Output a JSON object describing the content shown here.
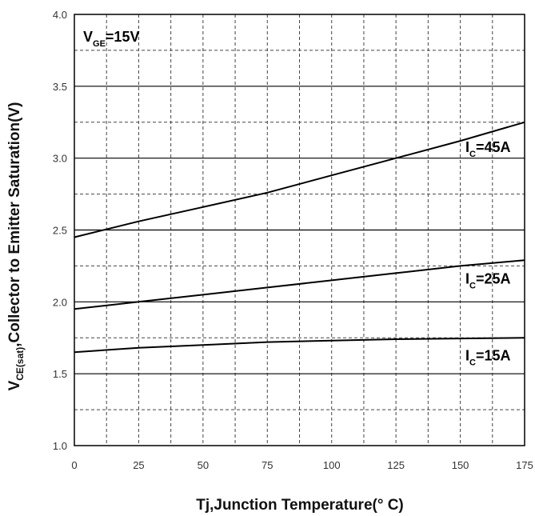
{
  "chart_data": {
    "type": "line",
    "x": [
      0,
      25,
      50,
      75,
      100,
      125,
      150,
      175
    ],
    "xlim": [
      0,
      175
    ],
    "ylim": [
      1.0,
      4.0
    ],
    "x_ticks": [
      "0",
      "25",
      "50",
      "75",
      "100",
      "125",
      "150",
      "175"
    ],
    "y_ticks": [
      "1.0",
      "1.5",
      "2.0",
      "2.5",
      "3.0",
      "3.5",
      "4.0"
    ],
    "xlabel": "Tj,Junction Temperature(° C)",
    "ylabel_main": "V",
    "ylabel_sub": "CE(sat)",
    "ylabel_rest": ",Collector to Emitter Saturation(V)",
    "grid": "major solid, minor dashed",
    "series": [
      {
        "name": "IC=45A",
        "label_main": "I",
        "label_sub": "C",
        "label_rest": "=45A",
        "color": "#000000",
        "values": [
          2.45,
          2.56,
          2.66,
          2.76,
          2.88,
          3.0,
          3.12,
          3.25
        ]
      },
      {
        "name": "IC=25A",
        "label_main": "I",
        "label_sub": "C",
        "label_rest": "=25A",
        "color": "#000000",
        "values": [
          1.95,
          2.0,
          2.05,
          2.1,
          2.15,
          2.2,
          2.25,
          2.29
        ]
      },
      {
        "name": "IC=15A",
        "label_main": "I",
        "label_sub": "C",
        "label_rest": "=15A",
        "color": "#000000",
        "values": [
          1.65,
          1.68,
          1.7,
          1.72,
          1.73,
          1.74,
          1.745,
          1.75
        ]
      }
    ],
    "annotation": {
      "main": "V",
      "sub": "GE",
      "rest": "=15V"
    }
  }
}
